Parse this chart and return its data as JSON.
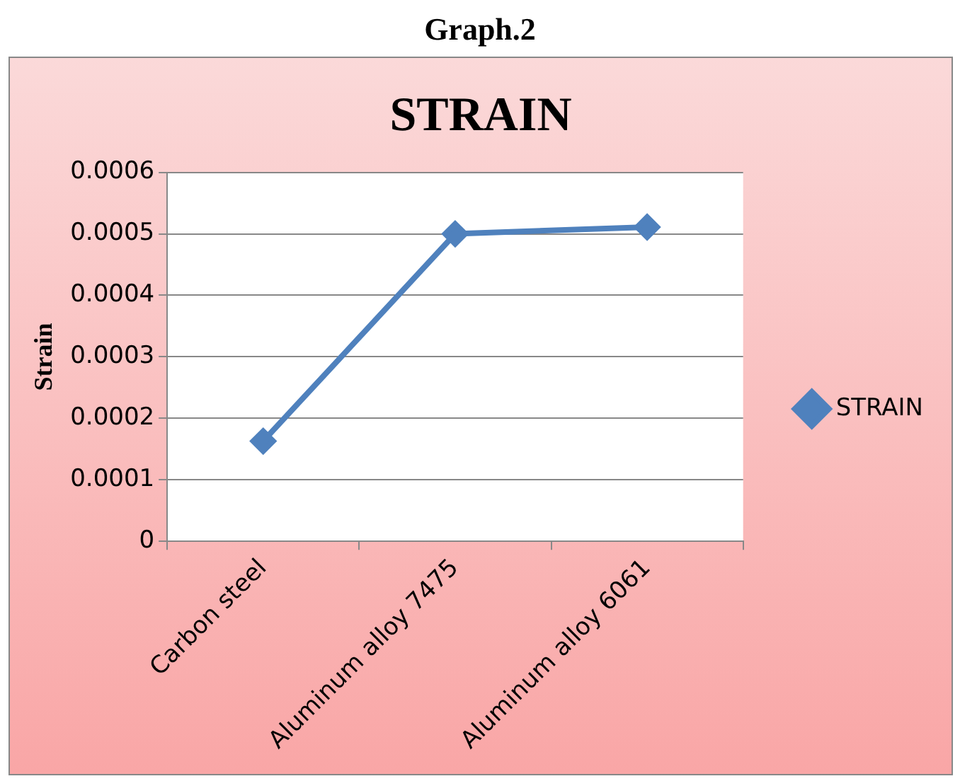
{
  "chart_data": {
    "type": "line",
    "title": "STRAIN",
    "ylabel": "Strain",
    "annotations": [
      "Graph.2"
    ],
    "categories": [
      "Carbon steel",
      "Aluminum alloy 7475",
      "Aluminum alloy 6061"
    ],
    "series": [
      {
        "name": "STRAIN",
        "color": "#4f81bd",
        "values": [
          0.000163,
          0.0005,
          0.000511
        ]
      }
    ],
    "ylim": [
      0,
      0.0006
    ],
    "yticks": [
      0,
      0.0001,
      0.0002,
      0.0003,
      0.0004,
      0.0005,
      0.0006
    ],
    "grid": "y",
    "legend": "right",
    "marker": "diamond",
    "line_style": "solid"
  }
}
